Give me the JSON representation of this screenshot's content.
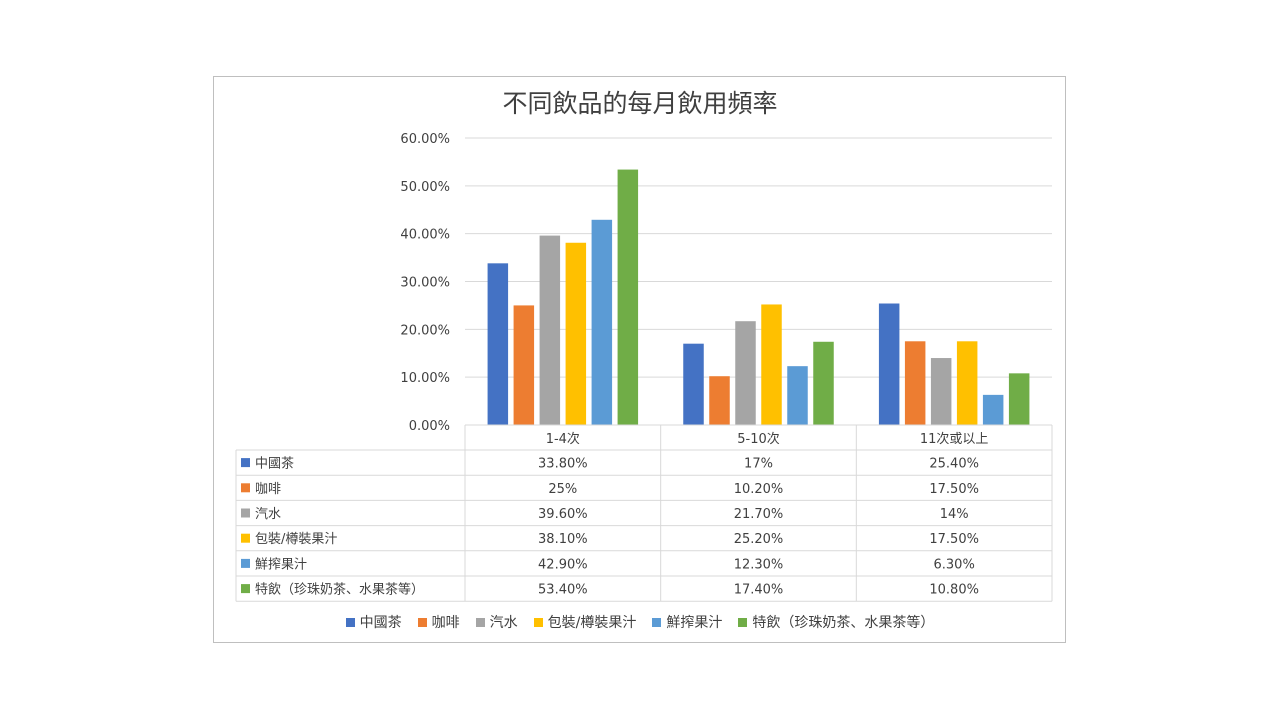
{
  "chart_data": {
    "type": "bar",
    "title": "不同飲品的每月飲用頻率",
    "categories": [
      "1-4次",
      "5-10次",
      "11次或以上"
    ],
    "ylim": [
      0,
      60
    ],
    "y_ticks": [
      "0.00%",
      "10.00%",
      "20.00%",
      "30.00%",
      "40.00%",
      "50.00%",
      "60.00%"
    ],
    "grid": true,
    "legend_position": "bottom",
    "data_table": true,
    "series": [
      {
        "name": "中國茶",
        "color": "#4472c4",
        "values": [
          33.8,
          17,
          25.4
        ],
        "labels": [
          "33.80%",
          "17%",
          "25.40%"
        ]
      },
      {
        "name": "咖啡",
        "color": "#ed7d31",
        "values": [
          25,
          10.2,
          17.5
        ],
        "labels": [
          "25%",
          "10.20%",
          "17.50%"
        ]
      },
      {
        "name": "汽水",
        "color": "#a5a5a5",
        "values": [
          39.6,
          21.7,
          14
        ],
        "labels": [
          "39.60%",
          "21.70%",
          "14%"
        ]
      },
      {
        "name": "包裝/樽裝果汁",
        "color": "#ffc000",
        "values": [
          38.1,
          25.2,
          17.5
        ],
        "labels": [
          "38.10%",
          "25.20%",
          "17.50%"
        ]
      },
      {
        "name": "鮮搾果汁",
        "color": "#5b9bd5",
        "values": [
          42.9,
          12.3,
          6.3
        ],
        "labels": [
          "42.90%",
          "12.30%",
          "6.30%"
        ]
      },
      {
        "name": "特飲（珍珠奶茶、水果茶等）",
        "color": "#70ad47",
        "values": [
          53.4,
          17.4,
          10.8
        ],
        "labels": [
          "53.40%",
          "17.40%",
          "10.80%"
        ]
      }
    ]
  }
}
